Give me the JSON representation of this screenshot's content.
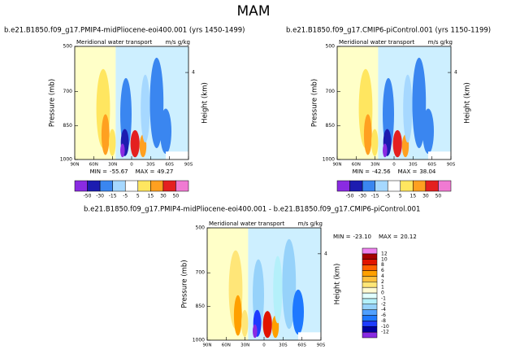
{
  "title": "MAM",
  "chart_data": [
    {
      "type": "contour",
      "title": "b.e21.B1850.f09_g17.PMIP4-midPliocene-eoi400.001 (yrs 1450-1499)",
      "subtitle": "Meridional water transport",
      "units": "m/s g/kg",
      "ylabel": "Pressure (mb)",
      "y2label": "Height (km)",
      "xlim": [
        90,
        -90
      ],
      "xticks": [
        {
          "value": 90,
          "label": "90N"
        },
        {
          "value": 60,
          "label": "60N"
        },
        {
          "value": 30,
          "label": "30N"
        },
        0,
        {
          "value": -30,
          "label": "30S"
        },
        {
          "value": -60,
          "label": "60S"
        },
        {
          "value": -90,
          "label": "90S"
        }
      ],
      "ylim": [
        1000,
        500
      ],
      "yticks": [
        500,
        700,
        850,
        1000
      ],
      "y2lim": [
        0,
        5.2
      ],
      "y2ticks": [
        4
      ],
      "min_label": "MIN =",
      "min": -55.67,
      "max_label": "MAX =",
      "max": 49.27,
      "colorbar": {
        "orientation": "horizontal",
        "levels": [
          -50,
          -30,
          -15,
          -5,
          5,
          15,
          30,
          50
        ],
        "colors": [
          "#8a2be2",
          "#1c1cb0",
          "#3a86f0",
          "#a6d8ff",
          "#ffffff",
          "#ffe660",
          "#ffa020",
          "#e42020",
          "#f07ad2"
        ]
      }
    },
    {
      "type": "contour",
      "title": "b.e21.B1850.f09_g17.CMIP6-piControl.001 (yrs 1150-1199)",
      "subtitle": "Meridional water transport",
      "units": "m/s g/kg",
      "ylabel": "Pressure (mb)",
      "y2label": "Height (km)",
      "xlim": [
        90,
        -90
      ],
      "xticks": [
        {
          "value": 90,
          "label": "90N"
        },
        {
          "value": 60,
          "label": "60N"
        },
        {
          "value": 30,
          "label": "30N"
        },
        0,
        {
          "value": -30,
          "label": "30S"
        },
        {
          "value": -60,
          "label": "60S"
        },
        {
          "value": -90,
          "label": "90S"
        }
      ],
      "ylim": [
        1000,
        500
      ],
      "yticks": [
        500,
        700,
        850,
        1000
      ],
      "y2lim": [
        0,
        5.2
      ],
      "y2ticks": [
        4
      ],
      "min_label": "MIN =",
      "min": -42.56,
      "max_label": "MAX =",
      "max": 38.04,
      "colorbar": {
        "orientation": "horizontal",
        "levels": [
          -50,
          -30,
          -15,
          -5,
          5,
          15,
          30,
          50
        ],
        "colors": [
          "#8a2be2",
          "#1c1cb0",
          "#3a86f0",
          "#a6d8ff",
          "#ffffff",
          "#ffe660",
          "#ffa020",
          "#e42020",
          "#f07ad2"
        ]
      }
    },
    {
      "type": "contour",
      "title": "b.e21.B1850.f09_g17.PMIP4-midPliocene-eoi400.001 - b.e21.B1850.f09_g17.CMIP6-piControl.001",
      "subtitle": "Meridional water transport",
      "units": "m/s g/kg",
      "ylabel": "Pressure (mb)",
      "y2label": "Height (km)",
      "xlim": [
        90,
        -90
      ],
      "xticks": [
        {
          "value": 90,
          "label": "90N"
        },
        {
          "value": 60,
          "label": "60N"
        },
        {
          "value": 30,
          "label": "30N"
        },
        0,
        {
          "value": -30,
          "label": "30S"
        },
        {
          "value": -60,
          "label": "60S"
        },
        {
          "value": -90,
          "label": "90S"
        }
      ],
      "ylim": [
        1000,
        500
      ],
      "yticks": [
        500,
        700,
        850,
        1000
      ],
      "y2lim": [
        0,
        5.2
      ],
      "y2ticks": [
        4
      ],
      "min_label": "MIN =",
      "min": {
        "value": -23.1,
        "label": "-23.10"
      },
      "max_label": "MAX =",
      "max": 20.12,
      "colorbar": {
        "orientation": "vertical",
        "levels": [
          -12,
          -10,
          -8,
          -6,
          -4,
          -2,
          -1,
          0,
          1,
          2,
          4,
          6,
          8,
          10,
          12
        ],
        "colors": [
          "#8a2be2",
          "#0000a0",
          "#1e3cff",
          "#1e78ff",
          "#50a0ff",
          "#96d2fa",
          "#b4f0fa",
          "#e1ffff",
          "#fffad2",
          "#ffe678",
          "#ffc03c",
          "#ffa000",
          "#ff6000",
          "#e11400",
          "#a50000",
          "#ee82ee"
        ]
      }
    }
  ]
}
